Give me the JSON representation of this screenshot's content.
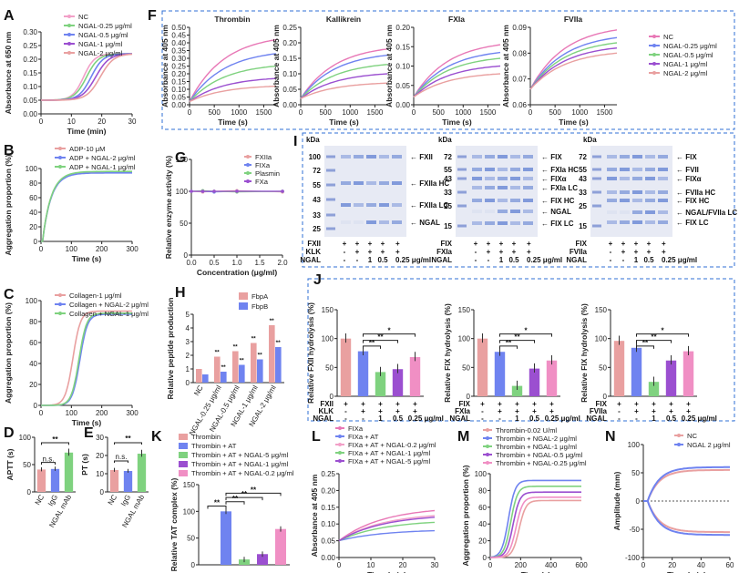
{
  "colors": {
    "pink": "#e878b6",
    "lightpink": "#f2a0c8",
    "green": "#7fd27f",
    "blue": "#6f83f0",
    "purple": "#9b4fd0",
    "salmon": "#e9a0a0",
    "gel_blue": "#3a62c8",
    "frame": "#2f6fd6"
  },
  "panels": {
    "A": {
      "label": "A"
    },
    "B": {
      "label": "B"
    },
    "C": {
      "label": "C"
    },
    "D": {
      "label": "D"
    },
    "E": {
      "label": "E"
    },
    "F": {
      "label": "F"
    },
    "G": {
      "label": "G"
    },
    "H": {
      "label": "H"
    },
    "I": {
      "label": "I"
    },
    "J": {
      "label": "J"
    },
    "K": {
      "label": "K"
    },
    "L": {
      "label": "L"
    },
    "M": {
      "label": "M"
    },
    "N": {
      "label": "N"
    }
  },
  "chart_data": [
    {
      "id": "A",
      "type": "line",
      "xlabel": "Time (min)",
      "ylabel": "Absorbance at 650 nm",
      "xlim": [
        0,
        30
      ],
      "ylim": [
        0.0,
        0.3
      ],
      "xticks": [
        "0",
        "10",
        "20",
        "30"
      ],
      "yticks": [
        "0.00",
        "0.05",
        "0.10",
        "0.15",
        "0.20",
        "0.25",
        "0.30"
      ],
      "series": [
        {
          "name": "NC",
          "color": "#f2a0c8",
          "mid": 14,
          "k": 0.55
        },
        {
          "name": "NGAL-0.25 μg/ml",
          "color": "#7fd27f",
          "mid": 15,
          "k": 0.5
        },
        {
          "name": "NGAL-0.5 μg/ml",
          "color": "#6f83f0",
          "mid": 16.5,
          "k": 0.5
        },
        {
          "name": "NGAL-1 μg/ml",
          "color": "#9b4fd0",
          "mid": 18,
          "k": 0.45
        },
        {
          "name": "NGAL-2 μg/ml",
          "color": "#e9a0a0",
          "mid": 19.5,
          "k": 0.45
        }
      ],
      "ymin": 0.05,
      "ymax": 0.22
    },
    {
      "id": "B",
      "type": "line",
      "xlabel": "Time (s)",
      "ylabel": "Aggregation proportion (%)",
      "xlim": [
        0,
        300
      ],
      "ylim": [
        0,
        100
      ],
      "xticks": [
        "0",
        "100",
        "200",
        "300"
      ],
      "yticks": [
        "0",
        "20",
        "40",
        "60",
        "80",
        "100"
      ],
      "series": [
        {
          "name": "ADP-10 μM",
          "color": "#e9a0a0"
        },
        {
          "name": "ADP + NGAL-2 μg/ml",
          "color": "#6f83f0"
        },
        {
          "name": "ADP + NGAL-1 μg/ml",
          "color": "#7fd27f"
        }
      ]
    },
    {
      "id": "C",
      "type": "line",
      "xlabel": "Time (s)",
      "ylabel": "Aggregation proportion (%)",
      "xlim": [
        0,
        300
      ],
      "ylim": [
        0,
        100
      ],
      "xticks": [
        "0",
        "100",
        "200",
        "300"
      ],
      "yticks": [
        "0",
        "20",
        "40",
        "60",
        "80",
        "100"
      ],
      "series": [
        {
          "name": "Collagen-1 μg/ml",
          "color": "#e9a0a0",
          "mid": 105,
          "top": 90
        },
        {
          "name": "Collagen + NGAL-2 μg/ml",
          "color": "#6f83f0",
          "mid": 128,
          "top": 87
        },
        {
          "name": "Collagen + NGAL-1 μg/ml",
          "color": "#7fd27f",
          "mid": 125,
          "top": 88
        }
      ]
    },
    {
      "id": "D",
      "type": "bar",
      "ylabel": "APTT (s)",
      "ylim": [
        0,
        100
      ],
      "yticks": [
        "0",
        "50",
        "100"
      ],
      "categories": [
        "NC",
        "IgG",
        "NGAL mAb"
      ],
      "values": [
        41,
        42,
        72
      ],
      "colors": [
        "#e9a0a0",
        "#6f83f0",
        "#7fd27f"
      ],
      "annotations": [
        "n.s.",
        "**"
      ]
    },
    {
      "id": "E",
      "type": "bar",
      "ylabel": "PT (s)",
      "ylim": [
        0,
        30
      ],
      "yticks": [
        "0",
        "10",
        "20",
        "30"
      ],
      "categories": [
        "NC",
        "IgG",
        "NGAL mAb"
      ],
      "values": [
        12,
        11.5,
        21
      ],
      "colors": [
        "#e9a0a0",
        "#6f83f0",
        "#7fd27f"
      ],
      "annotations": [
        "n.s.",
        "**"
      ]
    },
    {
      "id": "F",
      "type": "line",
      "ylabel": "Absorbance at 405 nm",
      "xlabel": "Time (s)",
      "subplots": [
        {
          "title": "Thrombin",
          "xlim": [
            0,
            1750
          ],
          "ylim": [
            0,
            0.5
          ],
          "yticks": [
            "0.00",
            "0.05",
            "0.10",
            "0.15",
            "0.20",
            "0.25",
            "0.30",
            "0.35",
            "0.40",
            "0.45",
            "0.50"
          ],
          "ends": [
            0.42,
            0.33,
            0.25,
            0.17,
            0.12
          ],
          "starts": [
            0.02,
            0.02,
            0.02,
            0.02,
            0.02
          ]
        },
        {
          "title": "Kallikrein",
          "xlim": [
            0,
            1750
          ],
          "ylim": [
            0,
            0.25
          ],
          "yticks": [
            "0.00",
            "0.05",
            "0.10",
            "0.15",
            "0.20",
            "0.25"
          ],
          "ends": [
            0.18,
            0.16,
            0.13,
            0.1,
            0.07
          ],
          "starts": [
            0.02,
            0.02,
            0.02,
            0.02,
            0.02
          ]
        },
        {
          "title": "FXIa",
          "xlim": [
            0,
            1750
          ],
          "ylim": [
            0,
            0.2
          ],
          "yticks": [
            "0.00",
            "0.05",
            "0.10",
            "0.15",
            "0.20"
          ],
          "ends": [
            0.155,
            0.135,
            0.12,
            0.1,
            0.08
          ],
          "starts": [
            0.02,
            0.02,
            0.02,
            0.02,
            0.02
          ]
        },
        {
          "title": "FVIIa",
          "xlim": [
            0,
            1750
          ],
          "ylim": [
            0.06,
            0.09
          ],
          "yticks": [
            "0.06",
            "0.07",
            "0.08",
            "0.09"
          ],
          "ends": [
            0.089,
            0.086,
            0.084,
            0.082,
            0.08
          ],
          "starts": [
            0.066,
            0.066,
            0.066,
            0.066,
            0.066
          ]
        }
      ],
      "xticks": [
        "0",
        "500",
        "1000",
        "1500"
      ],
      "series": [
        {
          "name": "NC",
          "color": "#e878b6"
        },
        {
          "name": "NGAL-0.25 μg/ml",
          "color": "#6f83f0"
        },
        {
          "name": "NGAL-0.5 μg/ml",
          "color": "#7fd27f"
        },
        {
          "name": "NGAL-1 μg/ml",
          "color": "#9b4fd0"
        },
        {
          "name": "NGAL-2 μg/ml",
          "color": "#e9a0a0"
        }
      ]
    },
    {
      "id": "G",
      "type": "line",
      "xlabel": "Concentration (μg/ml)",
      "ylabel": "Relative enzyme activity (%)",
      "xlim": [
        0,
        2.0
      ],
      "ylim": [
        0,
        150
      ],
      "xticks": [
        "0.0",
        "0.5",
        "1.0",
        "1.5",
        "2.0"
      ],
      "yticks": [
        "0",
        "50",
        "100",
        "150"
      ],
      "x": [
        0,
        0.25,
        0.5,
        1.0,
        2.0
      ],
      "series": [
        {
          "name": "FXIIa",
          "color": "#e9a0a0",
          "values": [
            100,
            99,
            100,
            101,
            99
          ]
        },
        {
          "name": "FIXa",
          "color": "#6f83f0",
          "values": [
            100,
            100,
            99,
            100,
            100
          ]
        },
        {
          "name": "Plasmin",
          "color": "#7fd27f",
          "values": [
            100,
            101,
            100,
            99,
            100
          ]
        },
        {
          "name": "FXa",
          "color": "#9b4fd0",
          "values": [
            100,
            100,
            100,
            100,
            100
          ]
        }
      ]
    },
    {
      "id": "H",
      "type": "bar",
      "ylabel": "Relative peptide production",
      "ylim": [
        0,
        5
      ],
      "yticks": [
        "0",
        "1",
        "2",
        "3",
        "4",
        "5"
      ],
      "categories": [
        "NC",
        "NGAL-0.25 μg/ml",
        "NGAL-0.5 μg/ml",
        "NGAL-1 μg/ml",
        "NGAL-2 μg/ml"
      ],
      "series": [
        {
          "name": "FbpA",
          "color": "#e9a0a0",
          "values": [
            1.0,
            1.9,
            2.3,
            2.9,
            4.2
          ]
        },
        {
          "name": "FbpB",
          "color": "#6f83f0",
          "values": [
            0.6,
            0.8,
            1.3,
            1.7,
            2.6
          ]
        }
      ],
      "annotation": "**"
    },
    {
      "id": "J",
      "type": "bar",
      "subplots": [
        {
          "ylabel": "Relative FXII hydrolysis (%)",
          "values": [
            100,
            78,
            42,
            47,
            68
          ],
          "row1": "FXII",
          "row2": "KLK",
          "row1v": [
            "+",
            "+",
            "+",
            "+",
            "+"
          ],
          "row2v": [
            "-",
            "+",
            "+",
            "+",
            "+"
          ]
        },
        {
          "ylabel": "Relative FIX hydrolysis (%)",
          "values": [
            100,
            77,
            18,
            48,
            62
          ],
          "row1": "FIX",
          "row2": "FXIa",
          "row1v": [
            "+",
            "+",
            "+",
            "+",
            "+"
          ],
          "row2v": [
            "-",
            "+",
            "+",
            "+",
            "+"
          ]
        },
        {
          "ylabel": "Relative FIX hydrolysis (%)",
          "values": [
            96,
            84,
            25,
            62,
            78
          ],
          "row1": "FIX",
          "row2": "FVIIa",
          "row1v": [
            "+",
            "+",
            "+",
            "+",
            "+"
          ],
          "row2v": [
            "-",
            "+",
            "+",
            "+",
            "+"
          ]
        }
      ],
      "ylim": [
        0,
        150
      ],
      "yticks": [
        "0",
        "50",
        "100",
        "150"
      ],
      "ngal": [
        "-",
        "-",
        "1",
        "0.5",
        "0.25"
      ],
      "ngal_label": "NGAL",
      "unit": "μg/ml",
      "colors": [
        "#e9a0a0",
        "#6f83f0",
        "#7fd27f",
        "#9b4fd0",
        "#f08fc4"
      ],
      "annotations": [
        "**",
        "**",
        "*"
      ]
    },
    {
      "id": "K",
      "type": "bar",
      "ylabel": "Relative TAT complex (%)",
      "ylim": [
        0,
        150
      ],
      "yticks": [
        "0",
        "50",
        "100",
        "150"
      ],
      "categories": [
        "Thrombin",
        "Thrombin + AT",
        "Thrombin + AT + NGAL-5 μg/ml",
        "Thrombin + AT + NGAL-1 μg/ml",
        "Thrombin + AT + NGAL-0.2 μg/ml"
      ],
      "values": [
        0,
        100,
        10,
        20,
        67
      ],
      "colors": [
        "#e9a0a0",
        "#6f83f0",
        "#7fd27f",
        "#9b4fd0",
        "#f08fc4"
      ],
      "annotations": [
        "**",
        "**",
        "**",
        "**"
      ]
    },
    {
      "id": "L",
      "type": "line",
      "xlabel": "Time (min)",
      "ylabel": "Absorbance at 405 nm",
      "xlim": [
        0,
        30
      ],
      "ylim": [
        0.0,
        0.25
      ],
      "xticks": [
        "0",
        "10",
        "20",
        "30"
      ],
      "yticks": [
        "0.00",
        "0.05",
        "0.10",
        "0.15",
        "0.20",
        "0.25"
      ],
      "series": [
        {
          "name": "FIXa",
          "color": "#e878b6",
          "end": 0.14
        },
        {
          "name": "FIXa + AT",
          "color": "#6f83f0",
          "end": 0.08
        },
        {
          "name": "FIXa + AT + NGAL-0.2 μg/ml",
          "color": "#f2a0c8",
          "end": 0.125
        },
        {
          "name": "FIXa + AT + NGAL-1 μg/ml",
          "color": "#7fd27f",
          "end": 0.105
        },
        {
          "name": "FIXa + AT + NGAL-5 μg/ml",
          "color": "#9b4fd0",
          "end": 0.12
        }
      ]
    },
    {
      "id": "M",
      "type": "line",
      "xlabel": "Time (s)",
      "ylabel": "Aggregation proportion (%)",
      "xlim": [
        0,
        600
      ],
      "ylim": [
        0,
        100
      ],
      "xticks": [
        "0",
        "200",
        "400",
        "600"
      ],
      "yticks": [
        "0",
        "20",
        "40",
        "60",
        "80",
        "100"
      ],
      "series": [
        {
          "name": "Thrombin-0.02 U/ml",
          "color": "#e9a0a0",
          "mid": 190,
          "top": 68
        },
        {
          "name": "Thrombin + NGAL-2 μg/ml",
          "color": "#6f83f0",
          "mid": 120,
          "top": 92
        },
        {
          "name": "Thrombin + NGAL-1 μg/ml",
          "color": "#7fd27f",
          "mid": 135,
          "top": 85
        },
        {
          "name": "Thrombin + NGAL-0.5 μg/ml",
          "color": "#9b4fd0",
          "mid": 150,
          "top": 78
        },
        {
          "name": "Thrombin + NGAL-0.25 μg/ml",
          "color": "#f08fc4",
          "mid": 170,
          "top": 72
        }
      ]
    },
    {
      "id": "N",
      "type": "line",
      "xlabel": "Time (min)",
      "ylabel": "Amplitude (mm)",
      "xlim": [
        0,
        60
      ],
      "ylim": [
        -100,
        100
      ],
      "xticks": [
        "0",
        "20",
        "40",
        "60"
      ],
      "yticks": [
        "-100",
        "-50",
        "0",
        "50",
        "100"
      ],
      "series": [
        {
          "name": "NC",
          "color": "#e9a0a0",
          "amp": 55
        },
        {
          "name": "NGAL 2 μg/ml",
          "color": "#6f83f0",
          "amp": 60
        }
      ]
    }
  ],
  "gels": {
    "I1": {
      "kda": "kDa",
      "ladder": [
        "100",
        "72",
        "55",
        "43",
        "33",
        "25"
      ],
      "bands": [
        "FXII",
        "FXIIa HC",
        "FXIIa LC",
        "NGAL"
      ],
      "rows": [
        {
          "name": "FXII",
          "v": [
            "+",
            "+",
            "+",
            "+",
            "+"
          ]
        },
        {
          "name": "KLK",
          "v": [
            "-",
            "+",
            "+",
            "+",
            "+"
          ]
        },
        {
          "name": "NGAL",
          "v": [
            "-",
            "-",
            "1",
            "0.5",
            "0.25 μg/ml"
          ]
        }
      ]
    },
    "I2": {
      "kda": "kDa",
      "ladder": [
        "72",
        "55",
        "43",
        "33",
        "25",
        "15"
      ],
      "bands": [
        "FIX",
        "FXIa HC",
        "FIXα",
        "FXIa LC",
        "FIX HC",
        "NGAL",
        "FIX LC"
      ],
      "rows": [
        {
          "name": "FIX",
          "v": [
            "+",
            "+",
            "+",
            "+",
            "+"
          ]
        },
        {
          "name": "FXIa",
          "v": [
            "-",
            "+",
            "+",
            "+",
            "+"
          ]
        },
        {
          "name": "NGAL",
          "v": [
            "-",
            "-",
            "1",
            "0.5",
            "0.25 μg/ml"
          ]
        }
      ]
    },
    "I3": {
      "kda": "kDa",
      "ladder": [
        "72",
        "55",
        "43",
        "33",
        "25",
        "15"
      ],
      "bands": [
        "FIX",
        "FVII",
        "FIXα",
        "FVIIa HC",
        "FIX HC",
        "NGAL/FVIIa LC",
        "FIX LC"
      ],
      "rows": [
        {
          "name": "FIX",
          "v": [
            "+",
            "+",
            "+",
            "+",
            "+"
          ]
        },
        {
          "name": "FVIIa",
          "v": [
            "-",
            "+",
            "+",
            "+",
            "+"
          ]
        },
        {
          "name": "NGAL",
          "v": [
            "-",
            "-",
            "1",
            "0.5",
            "0.25 μg/ml"
          ]
        }
      ]
    }
  }
}
